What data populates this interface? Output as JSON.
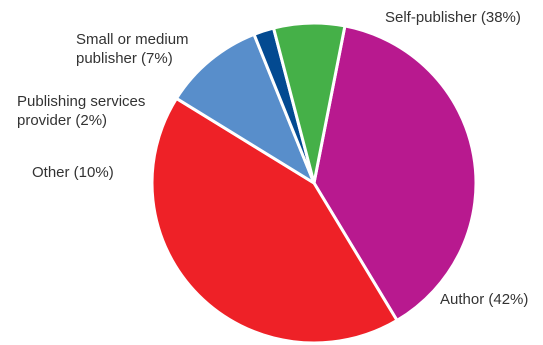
{
  "chart_data": {
    "type": "pie",
    "title": "",
    "slices": [
      {
        "label_lines": [
          "Self-publisher (38%)"
        ],
        "value": 38,
        "color": "#B8198F"
      },
      {
        "label_lines": [
          "Author (42%)"
        ],
        "value": 42,
        "color": "#EE2127"
      },
      {
        "label_lines": [
          "Other (10%)"
        ],
        "value": 10,
        "color": "#588ECB"
      },
      {
        "label_lines": [
          "Publishing services",
          "provider (2%)"
        ],
        "value": 2,
        "color": "#034A91"
      },
      {
        "label_lines": [
          "Small or medium",
          "publisher (7%)"
        ],
        "value": 7,
        "color": "#45B048"
      }
    ],
    "legend": "none",
    "start_angle_deg": 79
  }
}
